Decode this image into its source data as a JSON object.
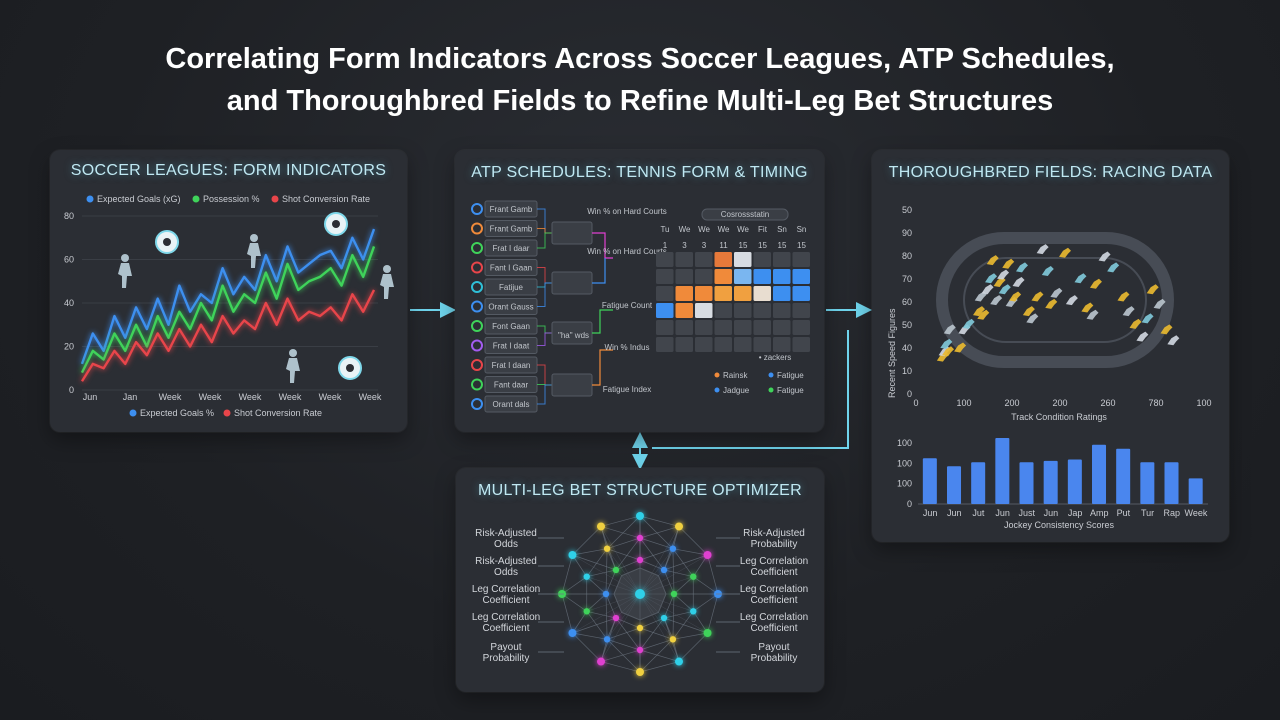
{
  "title_line1": "Correlating Form Indicators Across Soccer Leagues, ATP Schedules,",
  "title_line2": "and Thoroughbred Fields to Refine Multi-Leg Bet Structures",
  "soccer": {
    "title": "SOCCER LEAGUES: FORM INDICATORS",
    "legend_top": [
      "Expected Goals (xG)",
      "Possession %",
      "Shot Conversion Rate"
    ],
    "legend_bottom": [
      "Expected Goals %",
      "Shot Conversion Rate"
    ],
    "y_ticks": [
      "80",
      "60",
      "40",
      "20",
      "0"
    ],
    "x_ticks": [
      "Jun",
      "Jan",
      "Week",
      "Week",
      "Week",
      "Week",
      "Week",
      "Week"
    ],
    "colors": {
      "blue": "#3d8ff0",
      "green": "#3fd35a",
      "red": "#e8454a"
    }
  },
  "soccer_chart_data": {
    "type": "line",
    "series": [
      {
        "name": "Expected Goals (xG)",
        "values": [
          12,
          26,
          18,
          34,
          24,
          38,
          28,
          42,
          30,
          48,
          36,
          44,
          40,
          56,
          44,
          52,
          46,
          62,
          50,
          66,
          54,
          58,
          62,
          64,
          56,
          70,
          60,
          74
        ]
      },
      {
        "name": "Possession %",
        "values": [
          8,
          18,
          14,
          26,
          18,
          30,
          20,
          34,
          24,
          36,
          28,
          40,
          32,
          48,
          36,
          44,
          40,
          54,
          42,
          58,
          46,
          50,
          52,
          56,
          48,
          62,
          52,
          66
        ]
      },
      {
        "name": "Shot Conversion Rate",
        "values": [
          4,
          12,
          10,
          18,
          12,
          22,
          16,
          26,
          18,
          28,
          20,
          30,
          22,
          34,
          26,
          32,
          28,
          40,
          30,
          42,
          32,
          36,
          34,
          38,
          32,
          44,
          36,
          46
        ]
      }
    ],
    "ylim": [
      0,
      80
    ]
  },
  "atp": {
    "title": "ATP SCHEDULES: TENNIS FORM & TIMING",
    "bracket_labels": [
      "Frant Gamb",
      "Frant Gamb",
      "Frat I daar",
      "Fant I Gaan",
      "Fatijue",
      "Orant Gauss",
      "Font Gaan",
      "Frat I daat",
      "Frat I daan",
      "Fant daar",
      "Orant dals"
    ],
    "bracket_ring_colors": [
      "#3d8ff0",
      "#f08a3a",
      "#3fd35a",
      "#e8454a",
      "#2fc0d8",
      "#3d8ff0",
      "#3fd35a",
      "#a35cf0",
      "#e8454a",
      "#3fd35a",
      "#3d8ff0"
    ],
    "mid_label": "\"ha\" wds",
    "side_labels": [
      "Win % on Hard Courts",
      "Win % on Hard Courts",
      "Fatigue Count",
      "Win % Indus",
      "Fatigue Index"
    ],
    "cal_header": "Cosrossstatin",
    "cal_days": [
      "Tu",
      "We",
      "We",
      "We",
      "We",
      "Fit",
      "Sn",
      "Sn"
    ],
    "cal_dates": [
      "1",
      "3",
      "3",
      "11",
      "15",
      "15",
      "15",
      "15"
    ],
    "cal_note": "• zackers",
    "legend": [
      "Rainsk",
      "Fatigue",
      "Jadgue",
      "Fatigue"
    ],
    "legend_colors": [
      "#f08a3a",
      "#3d8ff0",
      "#3d8ff0",
      "#3fd35a"
    ]
  },
  "racing": {
    "title": "THOROUGHBRED FIELDS: RACING DATA",
    "scatter_ylabel": "Recent Speed Figures",
    "scatter_xlabel": "Track Condition Ratings",
    "scatter_y_ticks": [
      "50",
      "90",
      "80",
      "70",
      "60",
      "50",
      "40",
      "10",
      "0"
    ],
    "scatter_x_ticks": [
      "0",
      "100",
      "200",
      "200",
      "260",
      "780",
      "100"
    ],
    "bar_y_ticks": [
      "100",
      "100",
      "100",
      "0"
    ],
    "bar_x_ticks": [
      "Jun",
      "Jun",
      "Jut",
      "Jun",
      "Just",
      "Jun",
      "Jap",
      "Amp",
      "Put",
      "Tur",
      "Rap",
      "Week"
    ],
    "bar_xlabel": "Jockey Consistency Scores"
  },
  "racing_scatter_data": {
    "type": "scatter",
    "series": [
      {
        "name": "gold",
        "points": [
          [
            8,
            15
          ],
          [
            10,
            18
          ],
          [
            12,
            22
          ],
          [
            14,
            18
          ],
          [
            16,
            30
          ],
          [
            28,
            20
          ],
          [
            33,
            30
          ],
          [
            38,
            33
          ],
          [
            50,
            40
          ],
          [
            52,
            48
          ],
          [
            55,
            38
          ],
          [
            60,
            52
          ],
          [
            64,
            58
          ],
          [
            66,
            68
          ],
          [
            70,
            46
          ],
          [
            74,
            56
          ],
          [
            78,
            60
          ],
          [
            80,
            52
          ],
          [
            84,
            66
          ],
          [
            88,
            45
          ],
          [
            92,
            48
          ],
          [
            96,
            56
          ],
          [
            100,
            64
          ],
          [
            108,
            40
          ],
          [
            112,
            36
          ],
          [
            118,
            48
          ],
          [
            124,
            74
          ],
          [
            130,
            62
          ],
          [
            134,
            44
          ],
          [
            140,
            50
          ],
          [
            150,
            72
          ],
          [
            158,
            46
          ],
          [
            168,
            58
          ],
          [
            176,
            42
          ],
          [
            182,
            38
          ],
          [
            186,
            55
          ],
          [
            196,
            70
          ],
          [
            206,
            64
          ],
          [
            218,
            48
          ],
          [
            224,
            40
          ],
          [
            232,
            33
          ],
          [
            240,
            26
          ],
          [
            246,
            36
          ],
          [
            252,
            52
          ],
          [
            260,
            44
          ],
          [
            268,
            30
          ],
          [
            276,
            24
          ]
        ]
      }
    ],
    "xlim": [
      0,
      300
    ],
    "ylim": [
      0,
      90
    ]
  },
  "racing_bar_data": {
    "type": "bar",
    "values": [
      68,
      56,
      62,
      98,
      62,
      64,
      66,
      88,
      82,
      62,
      62,
      38
    ],
    "ylim": [
      0,
      150
    ]
  },
  "optimizer": {
    "title": "MULTI-LEG BET STRUCTURE OPTIMIZER",
    "left_labels": [
      [
        "Risk-Adjusted",
        "Odds"
      ],
      [
        "Risk-Adjusted",
        "Odds"
      ],
      [
        "Leg Correlation",
        "Coefficient"
      ],
      [
        "Leg Correlation",
        "Coefficient"
      ],
      [
        "Payout",
        "Probability"
      ]
    ],
    "right_labels": [
      [
        "Risk-Adjusted",
        "Probability"
      ],
      [
        "Leg Correlation",
        "Coefficient"
      ],
      [
        "Leg Correlation",
        "Coefficient"
      ],
      [
        "Leg Correlation",
        "Coefficient"
      ],
      [
        "Payout",
        "Probability"
      ]
    ],
    "node_colors": [
      "#2fd0e8",
      "#f0d040",
      "#e040d0",
      "#3d8ff0",
      "#3fd35a"
    ]
  }
}
